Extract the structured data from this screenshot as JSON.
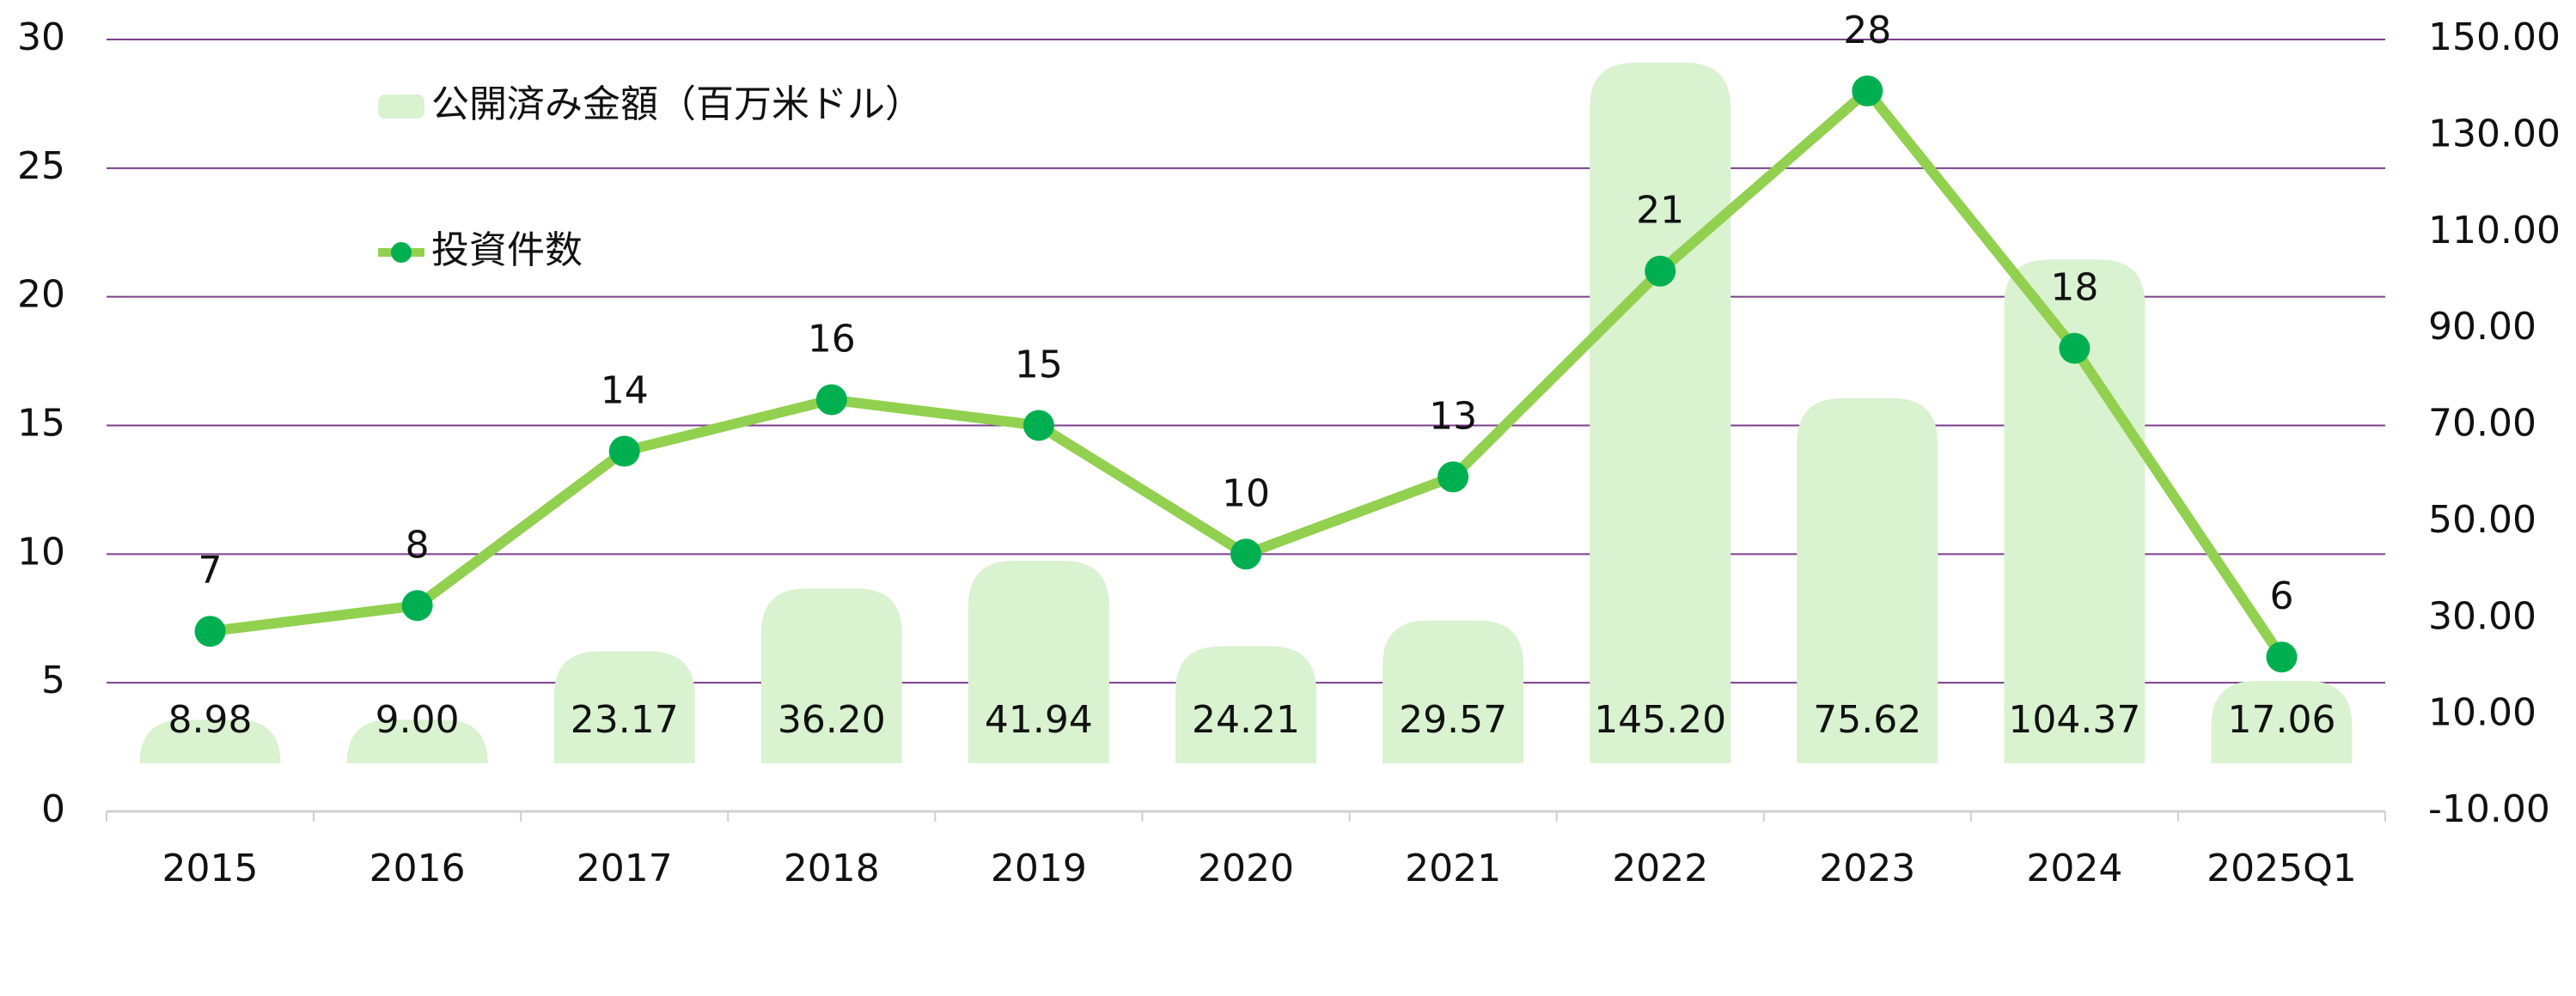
{
  "chart_data": {
    "type": "combo",
    "categories": [
      "2015",
      "2016",
      "2017",
      "2018",
      "2019",
      "2020",
      "2021",
      "2022",
      "2023",
      "2024",
      "2025Q1"
    ],
    "series": [
      {
        "name": "公開済み金額（百万米ドル）",
        "type": "bar",
        "axis": "y2",
        "color": "#d9f2d0",
        "values": [
          8.98,
          9.0,
          23.17,
          36.2,
          41.94,
          24.21,
          29.57,
          145.2,
          75.62,
          104.37,
          17.06
        ],
        "value_labels": [
          "8.98",
          "9.00",
          "23.17",
          "36.20",
          "41.94",
          "24.21",
          "29.57",
          "145.20",
          "75.62",
          "104.37",
          "17.06"
        ]
      },
      {
        "name": "投資件数",
        "type": "line",
        "color": "#92d050",
        "marker_color": "#00b050",
        "values": [
          7,
          8,
          14,
          16,
          15,
          10,
          13,
          21,
          28,
          18,
          6
        ]
      }
    ],
    "ylim": [
      0,
      30
    ],
    "yticks": [
      0,
      5,
      10,
      15,
      20,
      25,
      30
    ],
    "y2lim": [
      -10,
      150
    ],
    "y2ticks": [
      {
        "value": -10,
        "label": "-10.00"
      },
      {
        "value": 10,
        "label": "10.00"
      },
      {
        "value": 30,
        "label": "30.00"
      },
      {
        "value": 50,
        "label": "50.00"
      },
      {
        "value": 70,
        "label": "70.00"
      },
      {
        "value": 90,
        "label": "90.00"
      },
      {
        "value": 110,
        "label": "110.00"
      },
      {
        "value": 130,
        "label": "130.00"
      },
      {
        "value": 150,
        "label": "150.00"
      }
    ],
    "grid": true,
    "grid_color": "#7b3f8c"
  }
}
